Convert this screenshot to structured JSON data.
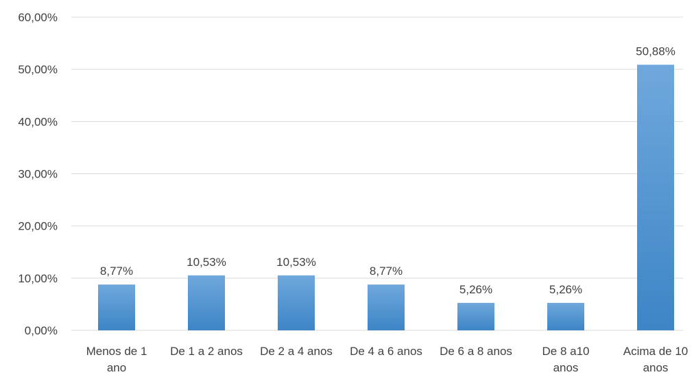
{
  "chart_data": {
    "type": "bar",
    "title": "",
    "xlabel": "",
    "ylabel": "",
    "categories": [
      [
        "Menos de 1",
        "ano"
      ],
      [
        "De 1 a 2 anos"
      ],
      [
        "De 2 a 4 anos"
      ],
      [
        "De 4 a 6 anos"
      ],
      [
        "De 6 a 8 anos"
      ],
      [
        "De 8 a10",
        "anos"
      ],
      [
        "Acima de 10",
        "anos"
      ]
    ],
    "values": [
      8.77,
      10.53,
      10.53,
      8.77,
      5.26,
      5.26,
      50.88
    ],
    "data_labels": [
      "8,77%",
      "10,53%",
      "10,53%",
      "8,77%",
      "5,26%",
      "5,26%",
      "50,88%"
    ],
    "ylim": [
      0,
      60
    ],
    "yticks": [
      0,
      10,
      20,
      30,
      40,
      50,
      60
    ],
    "ytick_labels": [
      "0,00%",
      "10,00%",
      "20,00%",
      "30,00%",
      "40,00%",
      "50,00%",
      "60,00%"
    ],
    "grid": true,
    "legend": "none",
    "colors": {
      "bar_top": "#6FA8DC",
      "bar_bottom": "#3D85C6",
      "grid": "#D9D9D9",
      "text": "#404040"
    }
  }
}
